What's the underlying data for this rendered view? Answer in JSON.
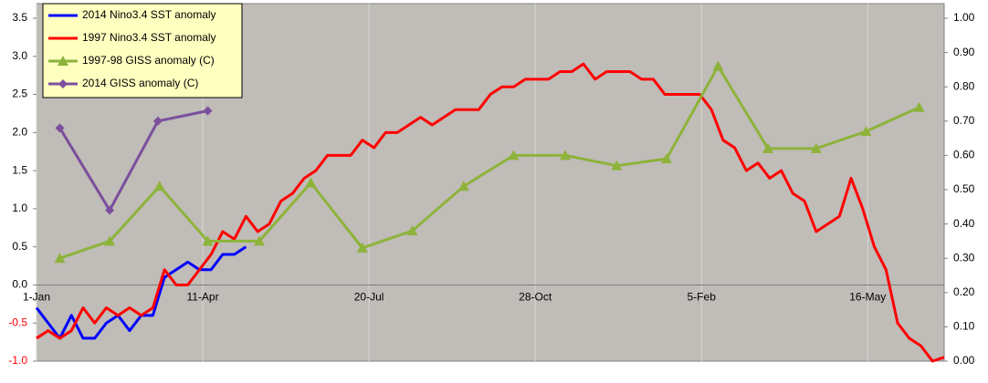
{
  "chart_data": {
    "type": "line",
    "xlim": [
      0,
      546
    ],
    "xticks": [
      {
        "value": 0,
        "label": "1-Jan"
      },
      {
        "value": 100,
        "label": "11-Apr"
      },
      {
        "value": 200,
        "label": "20-Jul"
      },
      {
        "value": 300,
        "label": "28-Oct"
      },
      {
        "value": 400,
        "label": "5-Feb"
      },
      {
        "value": 500,
        "label": "16-May"
      }
    ],
    "ylim": [
      -1,
      3.5
    ],
    "yticks": [
      {
        "value": -1,
        "label": "-1.0"
      },
      -0.5,
      {
        "value": 0,
        "label": "0.0"
      },
      0.5,
      {
        "value": 1,
        "label": "1.0"
      },
      1.5,
      {
        "value": 2,
        "label": "2.0"
      },
      2.5,
      {
        "value": 3,
        "label": "3.0"
      },
      3.5
    ],
    "y2lim": [
      0,
      1
    ],
    "y2ticks": [
      {
        "value": 0,
        "label": "0.00"
      },
      {
        "value": 0.1,
        "label": "0.10"
      },
      {
        "value": 0.2,
        "label": "0.20"
      },
      {
        "value": 0.3,
        "label": "0.30"
      },
      {
        "value": 0.4,
        "label": "0.40"
      },
      {
        "value": 0.5,
        "label": "0.50"
      },
      {
        "value": 0.6,
        "label": "0.60"
      },
      {
        "value": 0.7,
        "label": "0.70"
      },
      {
        "value": 0.8,
        "label": "0.80"
      },
      {
        "value": 0.9,
        "label": "0.90"
      },
      {
        "value": 1,
        "label": "1.00"
      }
    ],
    "grid": true,
    "legend": "top-left",
    "series": [
      {
        "name": "2014 Nino3.4 SST anomaly",
        "color": "#0000ff",
        "marker": "none",
        "x": [
          0,
          7,
          14,
          21,
          28,
          35,
          42,
          49,
          56,
          63,
          70,
          77,
          84,
          91,
          98,
          105,
          112,
          119,
          126
        ],
        "values": [
          -0.3,
          -0.5,
          -0.7,
          -0.4,
          -0.7,
          -0.7,
          -0.5,
          -0.4,
          -0.6,
          -0.4,
          -0.4,
          0.1,
          0.2,
          0.3,
          0.2,
          0.2,
          0.4,
          0.4,
          0.5
        ]
      },
      {
        "name": "1997 Nino3.4 SST anomaly",
        "color": "#ff0000",
        "marker": "none",
        "x": [
          0,
          7,
          14,
          21,
          28,
          35,
          42,
          49,
          56,
          63,
          70,
          77,
          84,
          91,
          98,
          105,
          112,
          119,
          126,
          133,
          140,
          147,
          154,
          161,
          168,
          175,
          182,
          189,
          196,
          203,
          210,
          217,
          224,
          231,
          238,
          245,
          252,
          259,
          266,
          273,
          280,
          287,
          294,
          301,
          308,
          315,
          322,
          329,
          336,
          343,
          350,
          357,
          364,
          371,
          378,
          385,
          392,
          399,
          406,
          413,
          420,
          427,
          434,
          441,
          448,
          455,
          462,
          469,
          476,
          483,
          490,
          497,
          504,
          511,
          518,
          525,
          532,
          539,
          546
        ],
        "values": [
          -0.7,
          -0.6,
          -0.7,
          -0.6,
          -0.3,
          -0.5,
          -0.3,
          -0.4,
          -0.3,
          -0.4,
          -0.3,
          0.2,
          0.0,
          0.0,
          0.2,
          0.4,
          0.7,
          0.6,
          0.9,
          0.7,
          0.8,
          1.1,
          1.2,
          1.4,
          1.5,
          1.7,
          1.7,
          1.7,
          1.9,
          1.8,
          2.0,
          2.0,
          2.1,
          2.2,
          2.1,
          2.2,
          2.3,
          2.3,
          2.3,
          2.5,
          2.6,
          2.6,
          2.7,
          2.7,
          2.7,
          2.8,
          2.8,
          2.9,
          2.7,
          2.8,
          2.8,
          2.8,
          2.7,
          2.7,
          2.5,
          2.5,
          2.5,
          2.5,
          2.3,
          1.9,
          1.8,
          1.5,
          1.6,
          1.4,
          1.5,
          1.2,
          1.1,
          0.7,
          0.8,
          0.9,
          1.4,
          1.0,
          0.5,
          0.2,
          -0.5,
          -0.7,
          -0.8,
          -1.0,
          -0.95
        ]
      },
      {
        "name": "1997-98 GISS anomaly (C)",
        "color": "#8db33a",
        "marker": "triangle",
        "axis": "y2",
        "x": [
          14,
          44,
          74,
          103,
          134,
          165,
          196,
          226,
          257,
          287,
          318,
          349,
          379,
          410,
          440,
          469,
          499,
          531
        ],
        "values": [
          0.3,
          0.35,
          0.51,
          0.35,
          0.35,
          0.52,
          0.33,
          0.38,
          0.51,
          0.6,
          0.6,
          0.57,
          0.59,
          0.86,
          0.62,
          0.62,
          0.67,
          0.74
        ]
      },
      {
        "name": "2014 GISS anomaly (C)",
        "color": "#7b4f9d",
        "marker": "diamond",
        "axis": "y2",
        "x": [
          14,
          44,
          73,
          103
        ],
        "values": [
          0.68,
          0.44,
          0.7,
          0.73
        ]
      }
    ]
  }
}
